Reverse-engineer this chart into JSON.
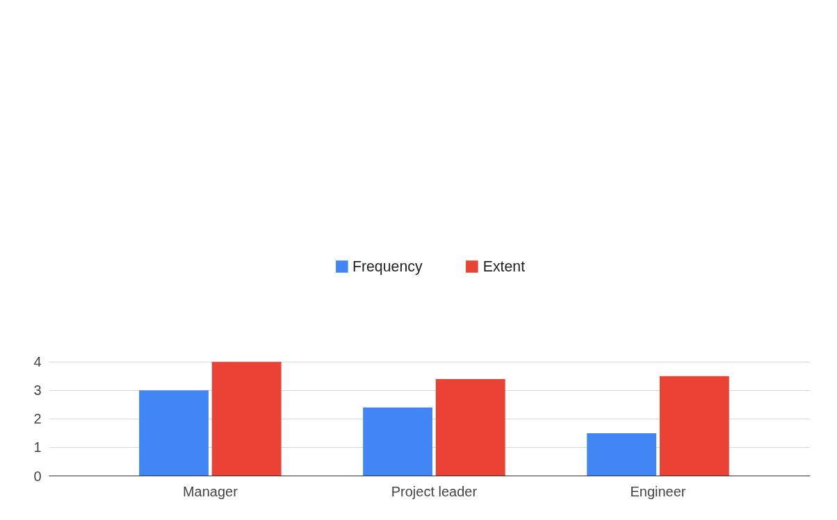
{
  "chart_data": {
    "type": "bar",
    "categories": [
      "Manager",
      "Project leader",
      "Engineer"
    ],
    "series": [
      {
        "name": "Frequency",
        "color": "#4285f4",
        "values": [
          3.0,
          2.4,
          1.5
        ]
      },
      {
        "name": "Extent",
        "color": "#ea4335",
        "values": [
          4.0,
          3.4,
          3.5
        ]
      }
    ],
    "ylim": [
      0,
      4
    ],
    "yticks": [
      0,
      1,
      2,
      3,
      4
    ],
    "grid": "y",
    "legend": "top"
  }
}
